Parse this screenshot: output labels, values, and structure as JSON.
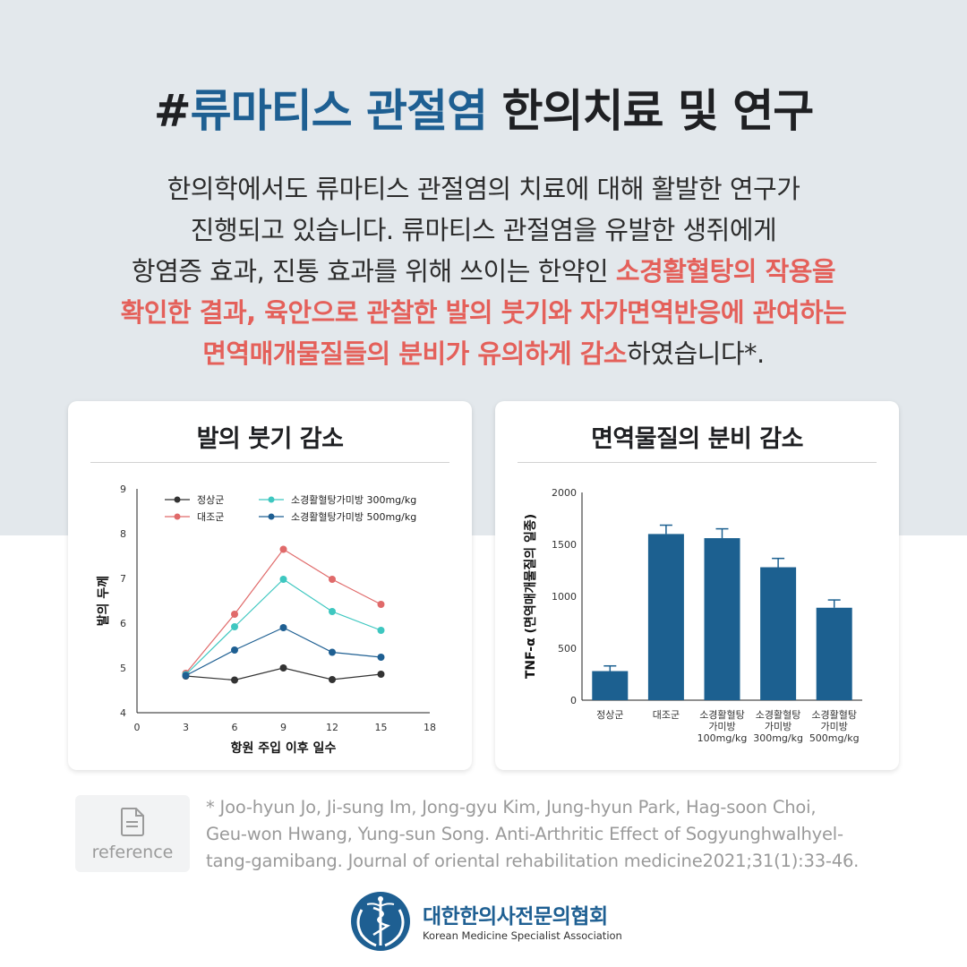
{
  "title": {
    "prefix": "#",
    "accent": "류마티스 관절염",
    "rest": " 한의치료 및 연구"
  },
  "intro": {
    "line1": "한의학에서도 류마티스 관절염의 치료에 대해 활발한 연구가",
    "line2": "진행되고 있습니다. 류마티스 관절염을 유발한 생쥐에게",
    "line3_plain": "항염증 효과, 진통 효과를 위해 쓰이는 한약인 ",
    "line3_hl": "소경활혈탕의 작용을",
    "line4_hl": "확인한 결과, 육안으로 관찰한 발의 붓기와 자가면역반응에 관여하는",
    "line5_hl": "면역매개물질들의 분비가 유의하게 감소",
    "line5_plain": "하였습니다*."
  },
  "colors": {
    "accent": "#1e5f92",
    "highlight": "#e4605a",
    "normal": "#333333",
    "control": "#e06a6a",
    "dose300": "#3ec7c0",
    "dose500": "#1e5f92",
    "bar": "#1c6090"
  },
  "chart_data": [
    {
      "type": "line",
      "title": "발의 붓기 감소",
      "xlabel": "항원 주입 이후 일수",
      "ylabel": "발의 두께",
      "xlim": [
        0,
        18
      ],
      "ylim": [
        4,
        9
      ],
      "xticks": [
        0,
        3,
        6,
        9,
        12,
        15,
        18
      ],
      "yticks": [
        4,
        5,
        6,
        7,
        8,
        9
      ],
      "legend_position": "top",
      "x": [
        3,
        6,
        9,
        12,
        15
      ],
      "series": [
        {
          "name": "정상군",
          "color": "#333333",
          "values": [
            4.82,
            4.73,
            5.0,
            4.74,
            4.86
          ]
        },
        {
          "name": "대조군",
          "color": "#e06a6a",
          "values": [
            4.88,
            6.2,
            7.65,
            6.98,
            6.42
          ]
        },
        {
          "name": "소경활혈탕가미방 300mg/kg",
          "color": "#3ec7c0",
          "values": [
            4.85,
            5.92,
            6.98,
            6.26,
            5.84
          ]
        },
        {
          "name": "소경활혈탕가미방 500mg/kg",
          "color": "#1e5f92",
          "values": [
            4.83,
            5.4,
            5.9,
            5.35,
            5.24
          ]
        }
      ]
    },
    {
      "type": "bar",
      "title": "면역물질의 분비 감소",
      "ylabel": "TNF-α (면역매개물질의 일종)",
      "ylim": [
        0,
        2000
      ],
      "yticks": [
        0,
        500,
        1000,
        1500,
        2000
      ],
      "categories": [
        [
          "정상군"
        ],
        [
          "대조군"
        ],
        [
          "소경활혈탕",
          "가미방",
          "100mg/kg"
        ],
        [
          "소경활혈탕",
          "가미방",
          "300mg/kg"
        ],
        [
          "소경활혈탕",
          "가미방",
          "500mg/kg"
        ]
      ],
      "values": [
        280,
        1600,
        1560,
        1280,
        890
      ],
      "errors": [
        50,
        85,
        90,
        85,
        75
      ]
    }
  ],
  "reference": {
    "label": "reference",
    "line1": "* Joo-hyun Jo, Ji-sung Im, Jong-gyu Kim, Jung-hyun Park, Hag-soon Choi,",
    "line2": "Geu-won Hwang, Yung-sun Song. Anti-Arthritic Effect of Sogyunghwalhyel-",
    "line3": "tang-gamibang. Journal of oriental rehabilitation medicine2021;31(1):33-46."
  },
  "logo": {
    "name_ko": "대한한의사전문의협회",
    "name_en": "Korean Medicine Specialist Association",
    "icon": "caduceus-logo-icon"
  }
}
